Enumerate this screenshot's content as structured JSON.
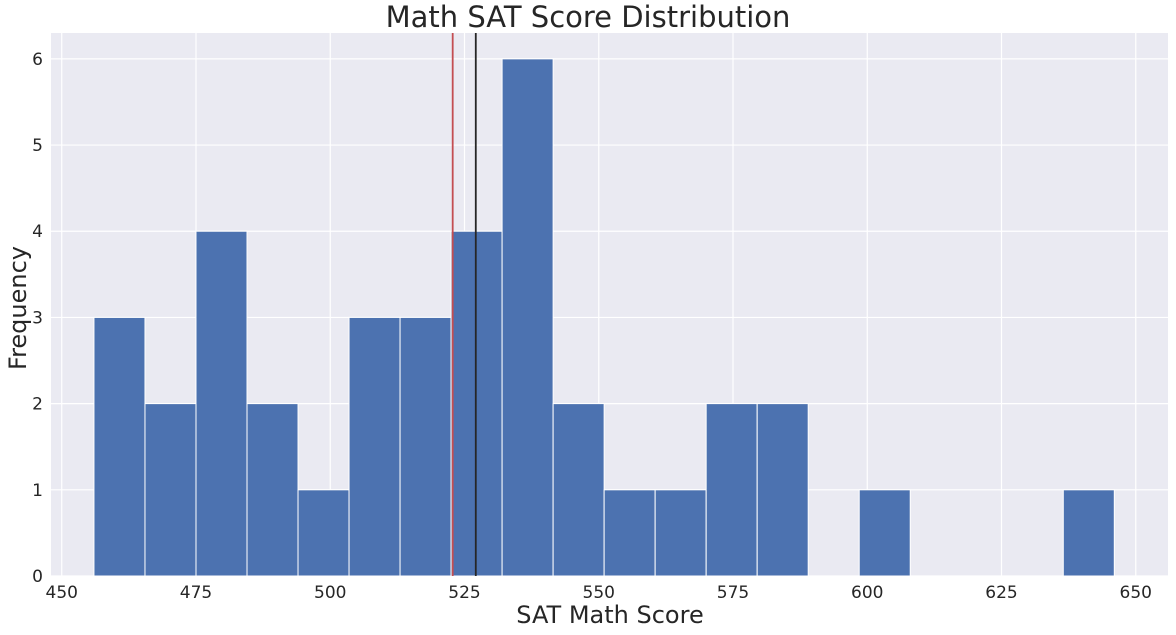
{
  "chart_data": {
    "type": "bar",
    "subtype": "histogram",
    "title": "Math SAT Score Distribution",
    "xlabel": "SAT Math Score",
    "ylabel": "Frequency",
    "xlim": [
      448,
      656
    ],
    "ylim": [
      0,
      6.3
    ],
    "xticks": [
      450,
      475,
      500,
      525,
      550,
      575,
      600,
      625,
      650
    ],
    "yticks": [
      0,
      1,
      2,
      3,
      4,
      5,
      6
    ],
    "bin_edges": [
      456,
      465.5,
      475,
      484.5,
      494,
      503.5,
      513,
      522.5,
      532,
      541.5,
      551,
      560.5,
      570,
      579.5,
      589,
      598.5,
      608,
      617.5,
      627,
      636.5,
      646
    ],
    "counts": [
      3,
      2,
      4,
      2,
      1,
      3,
      3,
      4,
      6,
      2,
      1,
      1,
      2,
      2,
      0,
      1,
      0,
      0,
      0,
      1
    ],
    "vertical_lines": [
      {
        "x": 522.8,
        "color": "#c44e52"
      },
      {
        "x": 527.1,
        "color": "#262626"
      }
    ],
    "bar_color": "#4c72b0",
    "background_color": "#eaeaf2",
    "grid": true
  }
}
